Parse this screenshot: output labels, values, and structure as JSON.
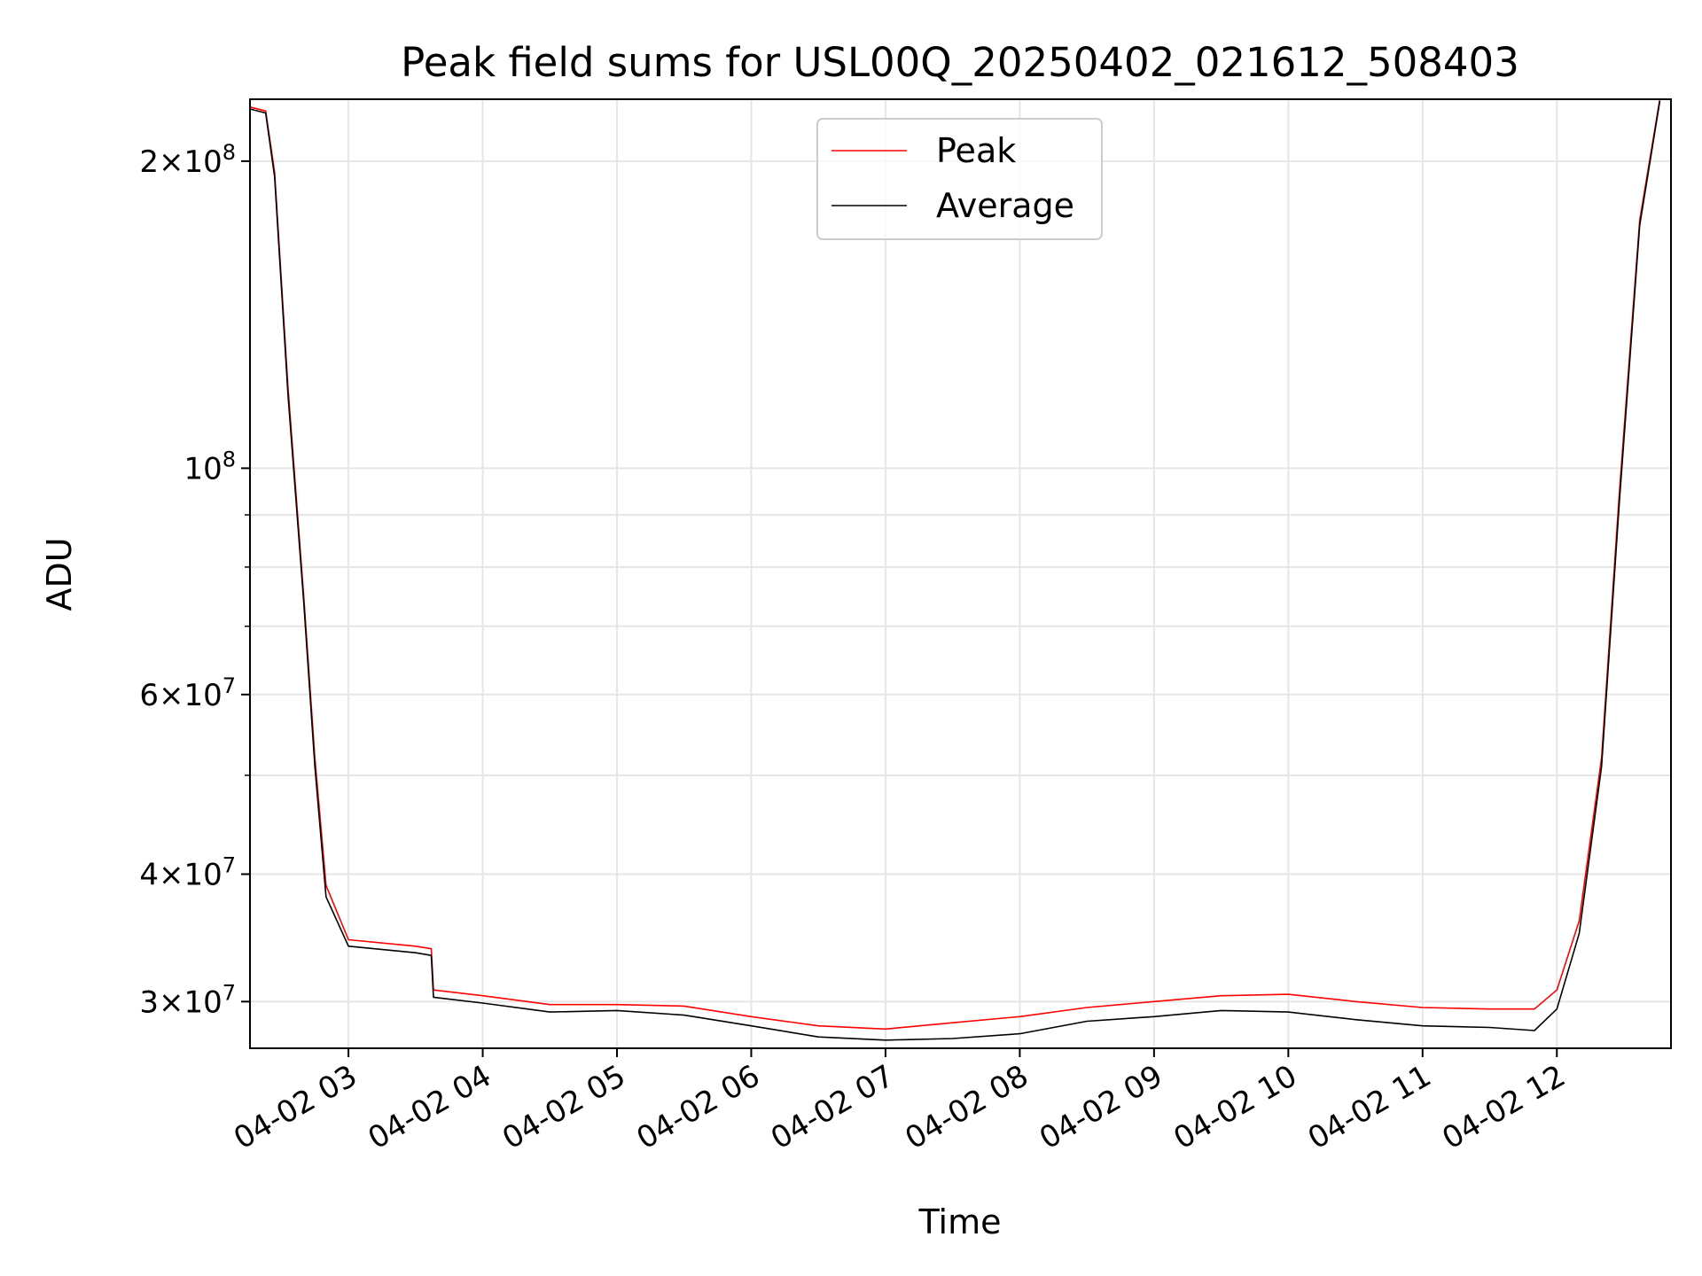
{
  "chart_data": {
    "type": "line",
    "title": "Peak field sums for USL00Q_20250402_021612_508403",
    "xlabel": "Time",
    "ylabel": "ADU",
    "yscale": "log",
    "ylim": [
      27000000,
      230000000
    ],
    "xlim": [
      "2025-04-02 02:16",
      "2025-04-02 12:51"
    ],
    "grid": true,
    "legend": {
      "placement": "upper-center",
      "entries": [
        "Peak",
        "Average"
      ]
    },
    "x_ticks": [
      {
        "value": "2025-04-02 03:00",
        "label": "04-02 03"
      },
      {
        "value": "2025-04-02 04:00",
        "label": "04-02 04"
      },
      {
        "value": "2025-04-02 05:00",
        "label": "04-02 05"
      },
      {
        "value": "2025-04-02 06:00",
        "label": "04-02 06"
      },
      {
        "value": "2025-04-02 07:00",
        "label": "04-02 07"
      },
      {
        "value": "2025-04-02 08:00",
        "label": "04-02 08"
      },
      {
        "value": "2025-04-02 09:00",
        "label": "04-02 09"
      },
      {
        "value": "2025-04-02 10:00",
        "label": "04-02 10"
      },
      {
        "value": "2025-04-02 11:00",
        "label": "04-02 11"
      },
      {
        "value": "2025-04-02 12:00",
        "label": "04-02 12"
      }
    ],
    "y_ticks": [
      {
        "value": 200000000,
        "mant": "2",
        "exp": "8"
      },
      {
        "value": 100000000,
        "mant": "",
        "exp": "8"
      },
      {
        "value": 60000000,
        "mant": "6",
        "exp": "7"
      },
      {
        "value": 40000000,
        "mant": "4",
        "exp": "7"
      },
      {
        "value": 30000000,
        "mant": "3",
        "exp": "7"
      }
    ],
    "y_minor_ticks": [
      90000000,
      80000000,
      70000000,
      50000000
    ],
    "series": [
      {
        "name": "Peak",
        "color": "#ff0000",
        "x": [
          "2025-04-02 02:16",
          "2025-04-02 02:23",
          "2025-04-02 02:27",
          "2025-04-02 02:33",
          "2025-04-02 02:40",
          "2025-04-02 02:45",
          "2025-04-02 02:50",
          "2025-04-02 03:00",
          "2025-04-02 03:30",
          "2025-04-02 03:37",
          "2025-04-02 03:38",
          "2025-04-02 04:00",
          "2025-04-02 04:30",
          "2025-04-02 05:00",
          "2025-04-02 05:30",
          "2025-04-02 06:00",
          "2025-04-02 06:30",
          "2025-04-02 07:00",
          "2025-04-02 07:30",
          "2025-04-02 08:00",
          "2025-04-02 08:30",
          "2025-04-02 09:00",
          "2025-04-02 09:30",
          "2025-04-02 10:00",
          "2025-04-02 10:30",
          "2025-04-02 11:00",
          "2025-04-02 11:30",
          "2025-04-02 11:50",
          "2025-04-02 12:00",
          "2025-04-02 12:10",
          "2025-04-02 12:20",
          "2025-04-02 12:28",
          "2025-04-02 12:37",
          "2025-04-02 12:46"
        ],
        "y": [
          226000000,
          224000000,
          195000000,
          120000000,
          75000000,
          52000000,
          39000000,
          34500000,
          34000000,
          33800000,
          30800000,
          30400000,
          29800000,
          29800000,
          29700000,
          29000000,
          28400000,
          28200000,
          28600000,
          29000000,
          29600000,
          30000000,
          30400000,
          30500000,
          30000000,
          29600000,
          29500000,
          29500000,
          30800000,
          36000000,
          52000000,
          95000000,
          175000000,
          230000000
        ]
      },
      {
        "name": "Average",
        "color": "#000000",
        "x": [
          "2025-04-02 02:16",
          "2025-04-02 02:23",
          "2025-04-02 02:27",
          "2025-04-02 02:33",
          "2025-04-02 02:40",
          "2025-04-02 02:45",
          "2025-04-02 02:50",
          "2025-04-02 03:00",
          "2025-04-02 03:30",
          "2025-04-02 03:37",
          "2025-04-02 03:38",
          "2025-04-02 04:00",
          "2025-04-02 04:30",
          "2025-04-02 05:00",
          "2025-04-02 05:30",
          "2025-04-02 06:00",
          "2025-04-02 06:30",
          "2025-04-02 07:00",
          "2025-04-02 07:30",
          "2025-04-02 08:00",
          "2025-04-02 08:30",
          "2025-04-02 09:00",
          "2025-04-02 09:30",
          "2025-04-02 10:00",
          "2025-04-02 10:30",
          "2025-04-02 11:00",
          "2025-04-02 11:30",
          "2025-04-02 11:50",
          "2025-04-02 12:00",
          "2025-04-02 12:10",
          "2025-04-02 12:20",
          "2025-04-02 12:28",
          "2025-04-02 12:37",
          "2025-04-02 12:46"
        ],
        "y": [
          225000000,
          223000000,
          193000000,
          118000000,
          74000000,
          51000000,
          38000000,
          34000000,
          33500000,
          33300000,
          30300000,
          29900000,
          29300000,
          29400000,
          29100000,
          28400000,
          27700000,
          27500000,
          27600000,
          27900000,
          28700000,
          29000000,
          29400000,
          29300000,
          28800000,
          28400000,
          28300000,
          28100000,
          29500000,
          35000000,
          51000000,
          93000000,
          173000000,
          229000000
        ]
      }
    ]
  }
}
